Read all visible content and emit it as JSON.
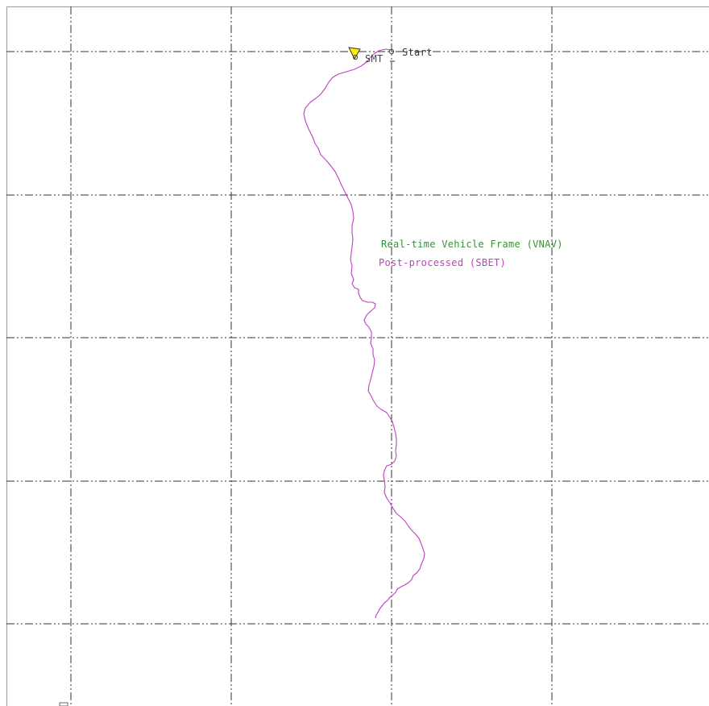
{
  "labels": {
    "start": "Start",
    "smt": "SMT"
  },
  "legend": {
    "items": [
      {
        "label": "Real-time Vehicle Frame (VNAV)",
        "color": "#3a8f3a"
      },
      {
        "label": "Post-processed (SBET)",
        "color": "#c040c0"
      }
    ]
  },
  "colors": {
    "background": "#ffffff",
    "grid": "#333333",
    "vnav_track": "#3a8f3a",
    "sbet_track": "#c040c0",
    "marker_flag": "#ffee00",
    "marker": "#444444"
  },
  "icons": {
    "start_marker": "circle-marker-icon",
    "smt_marker": "circle-marker-icon",
    "flag": "triangle-flag-icon"
  }
}
